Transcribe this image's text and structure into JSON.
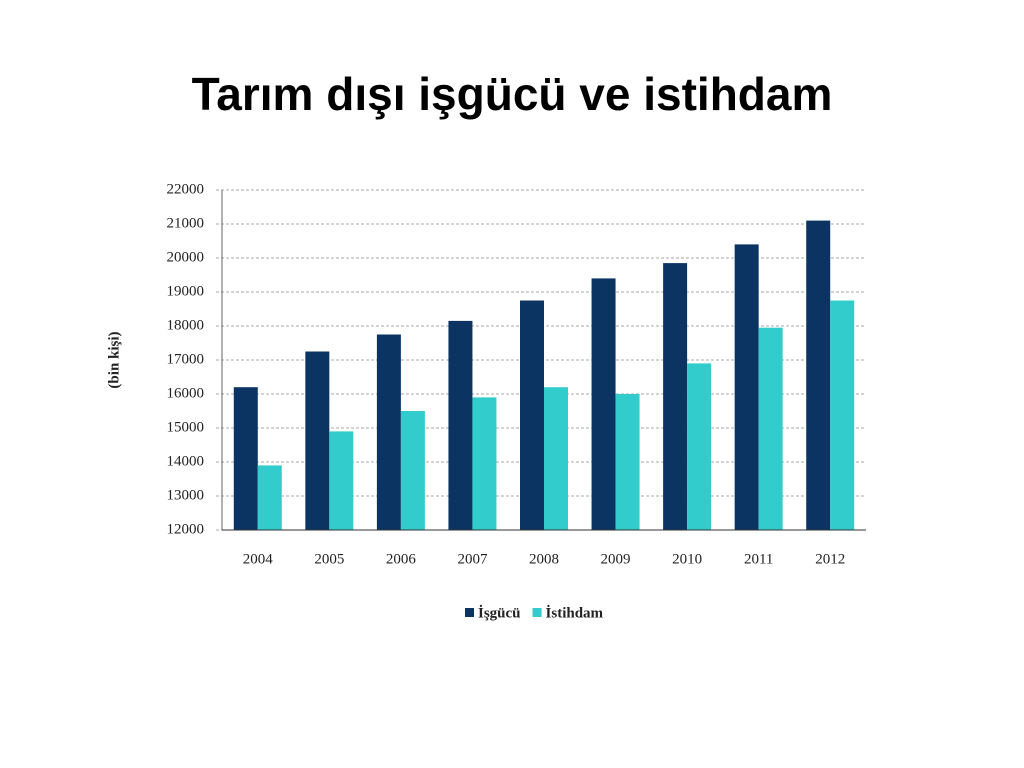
{
  "chart_data": {
    "type": "bar",
    "title": "Tarım dışı işgücü ve istihdam",
    "y_label": "(bin kişi)",
    "categories": [
      "2004",
      "2005",
      "2006",
      "2007",
      "2008",
      "2009",
      "2010",
      "2011",
      "2012"
    ],
    "series": [
      {
        "name": "İşgücü",
        "color": "#0b3463",
        "values": [
          16200,
          17250,
          17750,
          18150,
          18750,
          19400,
          19850,
          20400,
          21100
        ]
      },
      {
        "name": "İstihdam",
        "color": "#33cccc",
        "values": [
          13900,
          14900,
          15500,
          15900,
          16200,
          16000,
          16900,
          17950,
          18750
        ]
      }
    ],
    "ylim": [
      12000,
      22000
    ],
    "yticks": [
      12000,
      13000,
      14000,
      15000,
      16000,
      17000,
      18000,
      19000,
      20000,
      21000,
      22000
    ],
    "grid": true,
    "legend": "bottom"
  }
}
